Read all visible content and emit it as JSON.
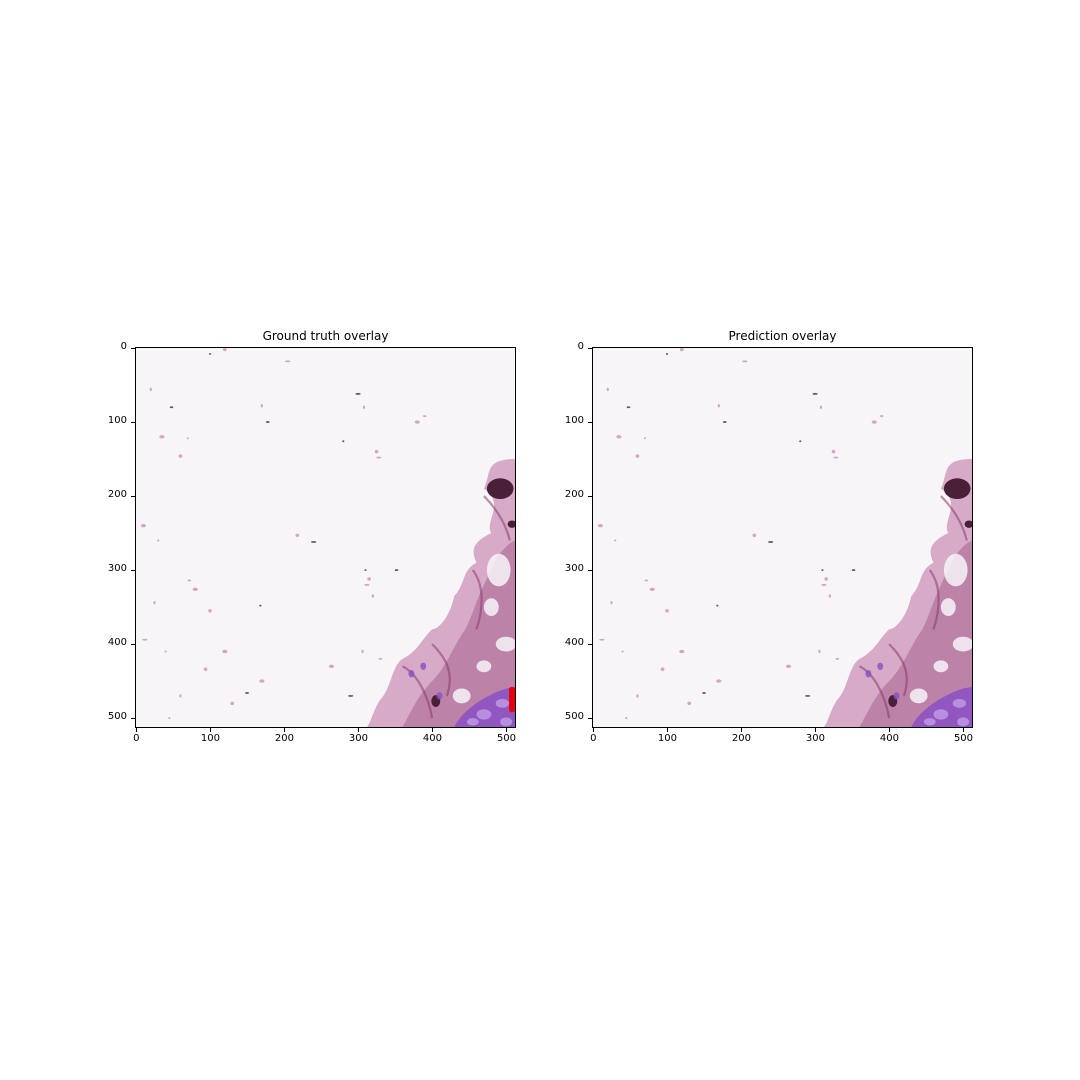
{
  "figure": {
    "panels": [
      {
        "id": "ground-truth",
        "title": "Ground truth overlay",
        "xticks": [
          "0",
          "100",
          "200",
          "300",
          "400",
          "500"
        ],
        "yticks": [
          "0",
          "100",
          "200",
          "300",
          "400",
          "500"
        ],
        "xtick_values": [
          0,
          100,
          200,
          300,
          400,
          500
        ],
        "ytick_values": [
          0,
          100,
          200,
          300,
          400,
          500
        ],
        "extent": [
          0,
          512
        ],
        "overlay_color": "#e8000b",
        "show_overlay": true
      },
      {
        "id": "prediction",
        "title": "Prediction overlay",
        "xticks": [
          "0",
          "100",
          "200",
          "300",
          "400",
          "500"
        ],
        "yticks": [
          "0",
          "100",
          "200",
          "300",
          "400",
          "500"
        ],
        "xtick_values": [
          0,
          100,
          200,
          300,
          400,
          500
        ],
        "ytick_values": [
          0,
          100,
          200,
          300,
          400,
          500
        ],
        "extent": [
          0,
          512
        ],
        "overlay_color": "#e8000b",
        "show_overlay": false
      }
    ],
    "colors": {
      "background": "#f7f5f8",
      "tissue_pink": "#c98ab3",
      "tissue_dark": "#8a3a6e",
      "cluster_dark": "#4a2038",
      "nuclei_purple": "#8a4fc4"
    }
  }
}
